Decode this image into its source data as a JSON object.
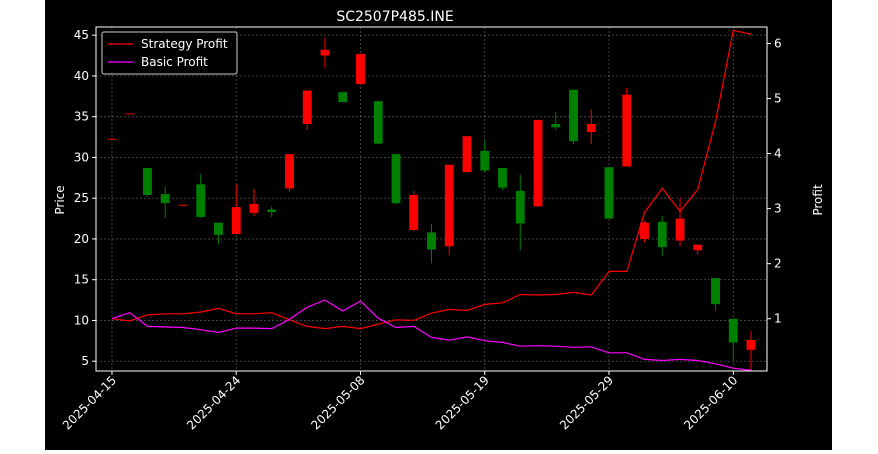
{
  "chart_data": {
    "type": "candlestick",
    "title": "SC2507P485.INE",
    "xlabel": "",
    "ylabel_left": "Price",
    "ylabel_right": "Profit",
    "ylim_left": [
      3.8,
      46
    ],
    "ylim_right": [
      0.05,
      6.3
    ],
    "yticks_left": [
      5,
      10,
      15,
      20,
      25,
      30,
      35,
      40,
      45
    ],
    "yticks_right": [
      1,
      2,
      3,
      4,
      5,
      6
    ],
    "x_tick_labels": [
      "2025-04-15",
      "2025-04-24",
      "2025-05-08",
      "2025-05-19",
      "2025-05-29",
      "2025-06-10"
    ],
    "x_tick_index": [
      0,
      7,
      14,
      21,
      28,
      35
    ],
    "grid": true,
    "legend_position": "upper left",
    "colors": {
      "up": "#ff0000",
      "down": "#008000",
      "strategy": "#ff0000",
      "basic": "#ff00ff"
    },
    "candles": [
      {
        "o": 32.3,
        "h": 32.3,
        "l": 32.3,
        "c": 32.3
      },
      {
        "o": 35.4,
        "h": 35.4,
        "l": 35.4,
        "c": 35.4
      },
      {
        "o": 28.7,
        "h": 28.7,
        "l": 25.2,
        "c": 25.4
      },
      {
        "o": 25.5,
        "h": 26.4,
        "l": 22.6,
        "c": 24.4
      },
      {
        "o": 24.2,
        "h": 24.2,
        "l": 24.2,
        "c": 24.2
      },
      {
        "o": 26.7,
        "h": 28.0,
        "l": 22.6,
        "c": 22.7
      },
      {
        "o": 22.0,
        "h": 22.0,
        "l": 19.4,
        "c": 20.5
      },
      {
        "o": 20.6,
        "h": 26.7,
        "l": 20.6,
        "c": 23.9
      },
      {
        "o": 23.2,
        "h": 26.1,
        "l": 22.8,
        "c": 24.3
      },
      {
        "o": 23.6,
        "h": 24.0,
        "l": 22.7,
        "c": 23.3
      },
      {
        "o": 26.2,
        "h": 30.4,
        "l": 25.8,
        "c": 30.4
      },
      {
        "o": 34.1,
        "h": 38.2,
        "l": 33.4,
        "c": 38.2
      },
      {
        "o": 42.5,
        "h": 44.7,
        "l": 40.9,
        "c": 43.2
      },
      {
        "o": 38.0,
        "h": 38.0,
        "l": 36.8,
        "c": 36.8
      },
      {
        "o": 39.0,
        "h": 42.7,
        "l": 39.0,
        "c": 42.7
      },
      {
        "o": 36.9,
        "h": 36.9,
        "l": 31.6,
        "c": 31.7
      },
      {
        "o": 30.4,
        "h": 30.4,
        "l": 24.2,
        "c": 24.4
      },
      {
        "o": 21.1,
        "h": 25.9,
        "l": 21.0,
        "c": 25.4
      },
      {
        "o": 20.8,
        "h": 21.8,
        "l": 17.0,
        "c": 18.7
      },
      {
        "o": 19.1,
        "h": 29.1,
        "l": 18.0,
        "c": 29.1
      },
      {
        "o": 28.2,
        "h": 32.6,
        "l": 28.2,
        "c": 32.6
      },
      {
        "o": 30.8,
        "h": 32.1,
        "l": 28.2,
        "c": 28.4
      },
      {
        "o": 28.7,
        "h": 28.7,
        "l": 26.0,
        "c": 26.3
      },
      {
        "o": 25.9,
        "h": 27.9,
        "l": 18.6,
        "c": 21.9
      },
      {
        "o": 24.0,
        "h": 34.6,
        "l": 24.0,
        "c": 34.6
      },
      {
        "o": 34.1,
        "h": 35.6,
        "l": 33.4,
        "c": 33.7
      },
      {
        "o": 38.3,
        "h": 38.3,
        "l": 31.6,
        "c": 32.0
      },
      {
        "o": 33.1,
        "h": 35.9,
        "l": 31.6,
        "c": 34.1
      },
      {
        "o": 28.8,
        "h": 28.8,
        "l": 22.5,
        "c": 22.5
      },
      {
        "o": 28.9,
        "h": 38.5,
        "l": 28.9,
        "c": 37.7
      },
      {
        "o": 20.0,
        "h": 22.2,
        "l": 19.6,
        "c": 22.0
      },
      {
        "o": 22.1,
        "h": 22.8,
        "l": 17.9,
        "c": 19.0
      },
      {
        "o": 19.8,
        "h": 25.0,
        "l": 19.1,
        "c": 22.5
      },
      {
        "o": 18.6,
        "h": 19.3,
        "l": 18.0,
        "c": 19.3
      },
      {
        "o": 15.2,
        "h": 15.2,
        "l": 11.2,
        "c": 12.0
      },
      {
        "o": 10.2,
        "h": 10.2,
        "l": 5.2,
        "c": 7.3
      },
      {
        "o": 6.4,
        "h": 8.7,
        "l": 3.8,
        "c": 7.6
      }
    ],
    "series": [
      {
        "name": "Strategy Profit",
        "values": [
          1.0,
          0.96,
          1.07,
          1.09,
          1.09,
          1.12,
          1.19,
          1.09,
          1.09,
          1.11,
          0.98,
          0.86,
          0.82,
          0.86,
          0.82,
          0.9,
          0.98,
          0.97,
          1.1,
          1.17,
          1.15,
          1.26,
          1.29,
          1.44,
          1.43,
          1.44,
          1.48,
          1.43,
          1.86,
          1.86,
          2.93,
          3.37,
          2.95,
          3.35,
          4.58,
          6.24,
          6.17
        ]
      },
      {
        "name": "Basic Profit",
        "values": [
          1.0,
          1.11,
          0.86,
          0.85,
          0.84,
          0.8,
          0.75,
          0.83,
          0.83,
          0.82,
          0.99,
          1.21,
          1.34,
          1.14,
          1.32,
          1.01,
          0.84,
          0.86,
          0.66,
          0.61,
          0.67,
          0.6,
          0.57,
          0.5,
          0.51,
          0.5,
          0.48,
          0.49,
          0.38,
          0.38,
          0.26,
          0.24,
          0.26,
          0.24,
          0.18,
          0.1,
          0.06
        ]
      }
    ]
  }
}
